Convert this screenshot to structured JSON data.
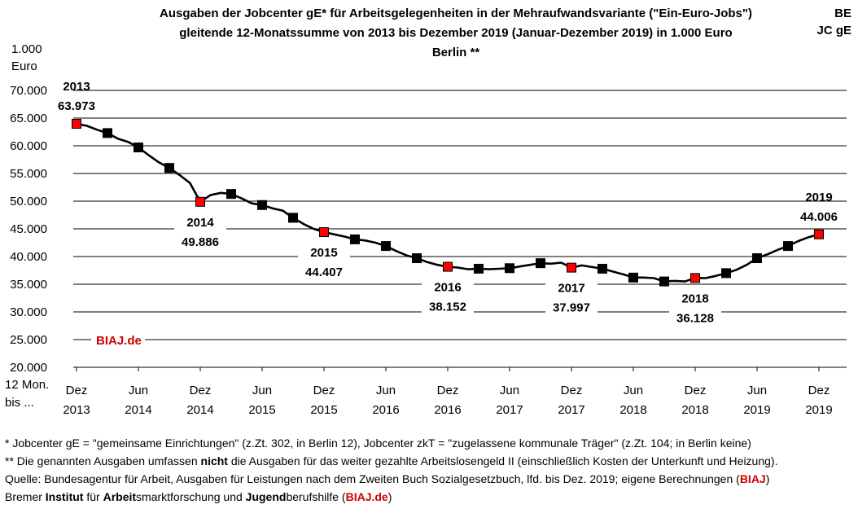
{
  "header": {
    "title_line1": "Ausgaben der Jobcenter gE* für Arbeitsgelegenheiten in der Mehraufwandsvariante (\"Ein-Euro-Jobs\")",
    "title_line2": "gleitende 12-Monatssumme von 2013 bis Dezember 2019 (Januar-Dezember 2019) in 1.000 Euro",
    "title_line3": "Berlin **",
    "corner_line1": "BE",
    "corner_line2": "JC gE"
  },
  "axis_text": {
    "unit_line1": "1.000",
    "unit_line2": "Euro",
    "xcap_line1": "12 Mon.",
    "xcap_line2": "bis ..."
  },
  "chart_data": {
    "type": "line",
    "ylim": [
      20000,
      70000
    ],
    "yticks": [
      "70.000",
      "65.000",
      "60.000",
      "55.000",
      "50.000",
      "45.000",
      "40.000",
      "35.000",
      "30.000",
      "25.000",
      "20.000"
    ],
    "ytick_values": [
      70000,
      65000,
      60000,
      55000,
      50000,
      45000,
      40000,
      35000,
      30000,
      25000,
      20000
    ],
    "grid": "horizontal",
    "xticks": [
      {
        "month": "Dez",
        "year": "2013",
        "t": 0
      },
      {
        "month": "Jun",
        "year": "2014",
        "t": 6
      },
      {
        "month": "Dez",
        "year": "2014",
        "t": 12
      },
      {
        "month": "Jun",
        "year": "2015",
        "t": 18
      },
      {
        "month": "Dez",
        "year": "2015",
        "t": 24
      },
      {
        "month": "Jun",
        "year": "2016",
        "t": 30
      },
      {
        "month": "Dez",
        "year": "2016",
        "t": 36
      },
      {
        "month": "Jun",
        "year": "2017",
        "t": 42
      },
      {
        "month": "Dez",
        "year": "2017",
        "t": 48
      },
      {
        "month": "Jun",
        "year": "2018",
        "t": 54
      },
      {
        "month": "Dez",
        "year": "2018",
        "t": 60
      },
      {
        "month": "Jun",
        "year": "2019",
        "t": 66
      },
      {
        "month": "Dez",
        "year": "2019",
        "t": 72
      }
    ],
    "series": [
      {
        "values": [
          {
            "t": 0,
            "v": 63973
          },
          {
            "t": 1,
            "v": 63600
          },
          {
            "t": 2,
            "v": 62900
          },
          {
            "t": 3,
            "v": 62300
          },
          {
            "t": 4,
            "v": 61300
          },
          {
            "t": 5,
            "v": 60700
          },
          {
            "t": 6,
            "v": 59700
          },
          {
            "t": 7,
            "v": 58300
          },
          {
            "t": 8,
            "v": 57000
          },
          {
            "t": 9,
            "v": 56000
          },
          {
            "t": 10,
            "v": 54700
          },
          {
            "t": 11,
            "v": 53300
          },
          {
            "t": 12,
            "v": 49886
          },
          {
            "t": 13,
            "v": 51100
          },
          {
            "t": 14,
            "v": 51500
          },
          {
            "t": 15,
            "v": 51300
          },
          {
            "t": 16,
            "v": 50500
          },
          {
            "t": 17,
            "v": 49600
          },
          {
            "t": 18,
            "v": 49300
          },
          {
            "t": 19,
            "v": 48700
          },
          {
            "t": 20,
            "v": 48300
          },
          {
            "t": 21,
            "v": 47000
          },
          {
            "t": 22,
            "v": 45900
          },
          {
            "t": 23,
            "v": 45000
          },
          {
            "t": 24,
            "v": 44407
          },
          {
            "t": 25,
            "v": 44000
          },
          {
            "t": 26,
            "v": 43600
          },
          {
            "t": 27,
            "v": 43100
          },
          {
            "t": 28,
            "v": 42900
          },
          {
            "t": 29,
            "v": 42500
          },
          {
            "t": 30,
            "v": 41900
          },
          {
            "t": 31,
            "v": 41000
          },
          {
            "t": 32,
            "v": 40200
          },
          {
            "t": 33,
            "v": 39700
          },
          {
            "t": 34,
            "v": 39000
          },
          {
            "t": 35,
            "v": 38500
          },
          {
            "t": 36,
            "v": 38152
          },
          {
            "t": 37,
            "v": 38000
          },
          {
            "t": 38,
            "v": 37700
          },
          {
            "t": 39,
            "v": 37800
          },
          {
            "t": 40,
            "v": 37700
          },
          {
            "t": 41,
            "v": 37800
          },
          {
            "t": 42,
            "v": 37900
          },
          {
            "t": 43,
            "v": 38200
          },
          {
            "t": 44,
            "v": 38500
          },
          {
            "t": 45,
            "v": 38800
          },
          {
            "t": 46,
            "v": 38700
          },
          {
            "t": 47,
            "v": 38900
          },
          {
            "t": 48,
            "v": 37997
          },
          {
            "t": 49,
            "v": 38400
          },
          {
            "t": 50,
            "v": 38100
          },
          {
            "t": 51,
            "v": 37800
          },
          {
            "t": 52,
            "v": 37300
          },
          {
            "t": 53,
            "v": 36800
          },
          {
            "t": 54,
            "v": 36200
          },
          {
            "t": 55,
            "v": 36200
          },
          {
            "t": 56,
            "v": 36100
          },
          {
            "t": 57,
            "v": 35500
          },
          {
            "t": 58,
            "v": 35600
          },
          {
            "t": 59,
            "v": 35500
          },
          {
            "t": 60,
            "v": 36128
          },
          {
            "t": 61,
            "v": 36100
          },
          {
            "t": 62,
            "v": 36500
          },
          {
            "t": 63,
            "v": 37000
          },
          {
            "t": 64,
            "v": 37600
          },
          {
            "t": 65,
            "v": 38500
          },
          {
            "t": 66,
            "v": 39700
          },
          {
            "t": 67,
            "v": 40400
          },
          {
            "t": 68,
            "v": 41200
          },
          {
            "t": 69,
            "v": 41900
          },
          {
            "t": 70,
            "v": 42800
          },
          {
            "t": 71,
            "v": 43500
          },
          {
            "t": 72,
            "v": 44006
          }
        ],
        "color": "#000000"
      }
    ],
    "markers": [
      {
        "t": 0,
        "v": 63973,
        "color": "#ff0000"
      },
      {
        "t": 3,
        "v": 62300,
        "color": "#000000"
      },
      {
        "t": 6,
        "v": 59700,
        "color": "#000000"
      },
      {
        "t": 9,
        "v": 56000,
        "color": "#000000"
      },
      {
        "t": 12,
        "v": 49886,
        "color": "#ff0000"
      },
      {
        "t": 15,
        "v": 51300,
        "color": "#000000"
      },
      {
        "t": 18,
        "v": 49300,
        "color": "#000000"
      },
      {
        "t": 21,
        "v": 47000,
        "color": "#000000"
      },
      {
        "t": 24,
        "v": 44407,
        "color": "#ff0000"
      },
      {
        "t": 27,
        "v": 43100,
        "color": "#000000"
      },
      {
        "t": 30,
        "v": 41900,
        "color": "#000000"
      },
      {
        "t": 33,
        "v": 39700,
        "color": "#000000"
      },
      {
        "t": 36,
        "v": 38152,
        "color": "#ff0000"
      },
      {
        "t": 39,
        "v": 37800,
        "color": "#000000"
      },
      {
        "t": 42,
        "v": 37900,
        "color": "#000000"
      },
      {
        "t": 45,
        "v": 38800,
        "color": "#000000"
      },
      {
        "t": 48,
        "v": 37997,
        "color": "#ff0000"
      },
      {
        "t": 51,
        "v": 37800,
        "color": "#000000"
      },
      {
        "t": 54,
        "v": 36200,
        "color": "#000000"
      },
      {
        "t": 57,
        "v": 35500,
        "color": "#000000"
      },
      {
        "t": 60,
        "v": 36128,
        "color": "#ff0000"
      },
      {
        "t": 63,
        "v": 37000,
        "color": "#000000"
      },
      {
        "t": 66,
        "v": 39700,
        "color": "#000000"
      },
      {
        "t": 69,
        "v": 41900,
        "color": "#000000"
      },
      {
        "t": 72,
        "v": 44006,
        "color": "#ff0000"
      }
    ],
    "annotations": [
      {
        "t": 0,
        "year": "2013",
        "value": "63.973",
        "pos": "above"
      },
      {
        "t": 12,
        "year": "2014",
        "value": "49.886",
        "pos": "below"
      },
      {
        "t": 24,
        "year": "2015",
        "value": "44.407",
        "pos": "below"
      },
      {
        "t": 36,
        "year": "2016",
        "value": "38.152",
        "pos": "below"
      },
      {
        "t": 48,
        "year": "2017",
        "value": "37.997",
        "pos": "below"
      },
      {
        "t": 60,
        "year": "2018",
        "value": "36.128",
        "pos": "below"
      },
      {
        "t": 72,
        "year": "2019",
        "value": "44.006",
        "pos": "above"
      }
    ],
    "watermark": "BIAJ.de",
    "watermark_color": "#cc0000"
  },
  "footnotes": {
    "f1": "*   Jobcenter gE = \"gemeinsame Einrichtungen\" (z.Zt. 302, in Berlin 12), Jobcenter zkT = \"zugelassene kommunale Träger\" (z.Zt. 104; in Berlin keine)",
    "f2_a": "** Die genannten Ausgaben umfassen ",
    "f2_b": "nicht",
    "f2_c": " die Ausgaben für das weiter gezahlte Arbeitslosengeld II (einschließlich Kosten der Unterkunft und Heizung).",
    "f3_a": "Quelle: Bundesagentur für Arbeit, Ausgaben für Leistungen nach dem Zweiten Buch Sozialgesetzbuch, lfd. bis Dez. 2019; eigene Berechnungen (",
    "f3_b": "BIAJ",
    "f3_c": ")",
    "f4_a": "Bremer ",
    "f4_b": "Institut",
    "f4_c": " für ",
    "f4_d": "Arbeit",
    "f4_e": "smarktforschung und ",
    "f4_f": "Jugend",
    "f4_g": "berufshilfe (",
    "f4_h": "BIAJ.de",
    "f4_i": ")"
  }
}
